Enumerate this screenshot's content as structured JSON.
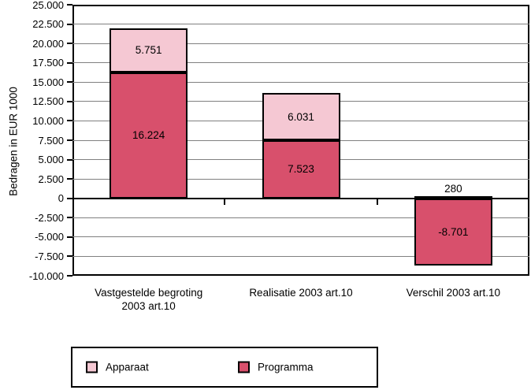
{
  "chart_data": {
    "type": "bar",
    "subtype": "stacked-vertical",
    "title": "",
    "ylabel": "Bedragen in EUR 1000",
    "xlabel": "",
    "ylim": [
      -10000,
      25000
    ],
    "ytick_step": 2500,
    "ytick_labels": [
      "25.000",
      "22.500",
      "20.000",
      "17.500",
      "15.000",
      "12.500",
      "10.000",
      "7.500",
      "5.000",
      "2.500",
      "0",
      "-2.500",
      "-5.000",
      "-7.500",
      "-10.000"
    ],
    "grid": {
      "show": true,
      "color": "#808080",
      "zero_line_color": "#000000"
    },
    "categories": [
      {
        "label_lines": [
          "Vastgestelde begroting",
          "2003 art.10"
        ]
      },
      {
        "label_lines": [
          "Realisatie 2003 art.10"
        ]
      },
      {
        "label_lines": [
          "Verschil 2003 art.10"
        ]
      }
    ],
    "series": [
      {
        "name": "Apparaat",
        "color": "#f5c8d3",
        "values": [
          5751,
          6031,
          280
        ],
        "labels": [
          "5.751",
          "6.031",
          "280"
        ]
      },
      {
        "name": "Programma",
        "color": "#d8506c",
        "values": [
          16224,
          7523,
          -8701
        ],
        "labels": [
          "16.224",
          "7.523",
          "-8.701"
        ]
      }
    ],
    "legend": {
      "position": "bottom",
      "items": [
        {
          "label": "Apparaat",
          "color": "#f5c8d3"
        },
        {
          "label": "Programma",
          "color": "#d8506c"
        }
      ]
    }
  }
}
